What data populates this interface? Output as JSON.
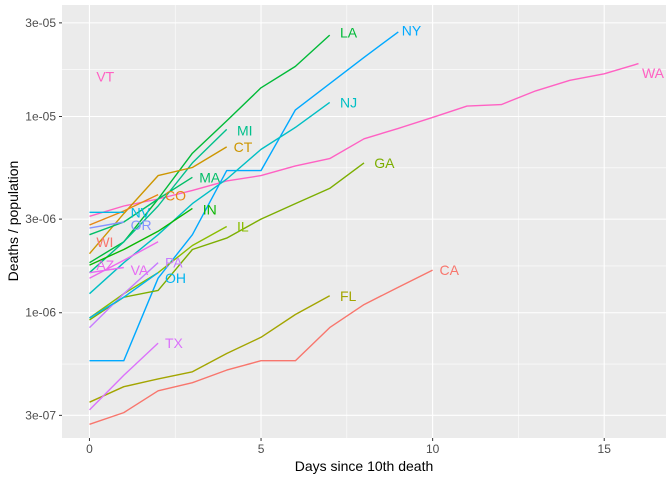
{
  "chart_data": {
    "type": "line",
    "title": "",
    "xlabel": "Days since 10th death",
    "ylabel": "Deaths / population",
    "x_scale": "linear",
    "y_scale": "log10",
    "xlim": [
      -0.8,
      16.8
    ],
    "ylim": [
      2.3e-07,
      3.7e-05
    ],
    "x_ticks": [
      0,
      5,
      10,
      15
    ],
    "x_tick_labels": [
      "0",
      "5",
      "10",
      "15"
    ],
    "y_ticks": [
      3e-07,
      1e-06,
      3e-06,
      1e-05,
      3e-05
    ],
    "y_tick_labels": [
      "3e-07",
      "1e-06",
      "3e-06",
      "1e-05",
      "3e-05"
    ],
    "grid": true,
    "legend": "none (series labeled at line ends)",
    "series": [
      {
        "name": "WA",
        "color": "#FF61C3",
        "x": [
          0,
          1,
          2,
          3,
          4,
          5,
          6,
          7,
          8,
          9,
          10,
          11,
          12,
          13,
          14,
          15,
          16
        ],
        "y": [
          3.1e-06,
          3.5e-06,
          3.8e-06,
          4.2e-06,
          4.7e-06,
          5e-06,
          5.6e-06,
          6.1e-06,
          7.7e-06,
          8.7e-06,
          9.9e-06,
          1.13e-05,
          1.15e-05,
          1.35e-05,
          1.53e-05,
          1.65e-05,
          1.86e-05
        ]
      },
      {
        "name": "NY",
        "color": "#00A9FF",
        "x": [
          0,
          1,
          2,
          3,
          4,
          5,
          6,
          7,
          8,
          9
        ],
        "y": [
          5.7e-07,
          5.7e-07,
          1.5e-06,
          2.5e-06,
          5.3e-06,
          5.3e-06,
          1.08e-05,
          1.47e-05,
          2e-05,
          2.7e-05
        ]
      },
      {
        "name": "LA",
        "color": "#00BA38",
        "x": [
          0,
          1,
          2,
          3,
          4,
          5,
          6,
          7
        ],
        "y": [
          1.8e-06,
          2.3e-06,
          3.8e-06,
          6.5e-06,
          9.5e-06,
          1.4e-05,
          1.8e-05,
          2.6e-05
        ]
      },
      {
        "name": "NJ",
        "color": "#00BFC4",
        "x": [
          0,
          1,
          2,
          3,
          4,
          5,
          6,
          7
        ],
        "y": [
          1.25e-06,
          1.8e-06,
          2.5e-06,
          3.6e-06,
          4.8e-06,
          6.8e-06,
          8.8e-06,
          1.18e-05
        ]
      },
      {
        "name": "MI",
        "color": "#00C08B",
        "x": [
          0,
          1,
          2,
          3,
          4
        ],
        "y": [
          1.6e-06,
          2.3e-06,
          3.5e-06,
          5.8e-06,
          8.6e-06
        ]
      },
      {
        "name": "CT",
        "color": "#CD9600",
        "x": [
          0,
          1,
          2,
          3,
          4
        ],
        "y": [
          2e-06,
          3.2e-06,
          5e-06,
          5.5e-06,
          7e-06
        ]
      },
      {
        "name": "GA",
        "color": "#7CAE00",
        "x": [
          0,
          1,
          2,
          3,
          4,
          5,
          6,
          7,
          8
        ],
        "y": [
          9.2e-07,
          1.2e-06,
          1.3e-06,
          2.1e-06,
          2.4e-06,
          3e-06,
          3.6e-06,
          4.3e-06,
          5.8e-06
        ]
      },
      {
        "name": "MA",
        "color": "#00BE67",
        "x": [
          0,
          1,
          2,
          3
        ],
        "y": [
          2.5e-06,
          2.9e-06,
          3.8e-06,
          4.9e-06
        ]
      },
      {
        "name": "CO",
        "color": "#E68613",
        "x": [
          0,
          1,
          2
        ],
        "y": [
          2.8e-06,
          3.3e-06,
          4e-06
        ]
      },
      {
        "name": "NV",
        "color": "#00B8E7",
        "x": [
          0,
          1
        ],
        "y": [
          3.25e-06,
          3.25e-06
        ]
      },
      {
        "name": "IN",
        "color": "#0CB702",
        "x": [
          0,
          1,
          2,
          3
        ],
        "y": [
          1.75e-06,
          2.1e-06,
          2.6e-06,
          3.4e-06
        ]
      },
      {
        "name": "OR",
        "color": "#8494FF",
        "x": [
          0,
          1
        ],
        "y": [
          2.7e-06,
          2.9e-06
        ]
      },
      {
        "name": "IL",
        "color": "#8ABD00",
        "x": [
          0,
          1,
          2,
          3,
          4
        ],
        "y": [
          9.4e-07,
          1.25e-06,
          1.6e-06,
          2.2e-06,
          2.75e-06
        ]
      },
      {
        "name": "WI",
        "color": "#F8766D",
        "x": [
          0
        ],
        "y": [
          2.3e-06
        ]
      },
      {
        "name": "AZ",
        "color": "#ED68ED",
        "x": [
          0,
          1,
          2
        ],
        "y": [
          1.5e-06,
          1.85e-06,
          2.3e-06
        ]
      },
      {
        "name": "PA",
        "color": "#C77CFF",
        "x": [
          0,
          1,
          2
        ],
        "y": [
          8.4e-07,
          1.25e-06,
          1.8e-06
        ]
      },
      {
        "name": "VA",
        "color": "#E76BF3",
        "x": [
          0,
          1
        ],
        "y": [
          1.6e-06,
          1.7e-06
        ]
      },
      {
        "name": "OH",
        "color": "#00B4F0",
        "x": [
          0,
          1,
          2
        ],
        "y": [
          9.4e-07,
          1.2e-06,
          1.6e-06
        ]
      },
      {
        "name": "FL",
        "color": "#A3A500",
        "x": [
          0,
          1,
          2,
          3,
          4,
          5,
          6,
          7
        ],
        "y": [
          3.5e-07,
          4.2e-07,
          4.6e-07,
          5e-07,
          6.2e-07,
          7.5e-07,
          9.8e-07,
          1.22e-06
        ]
      },
      {
        "name": "TX",
        "color": "#DB72FB",
        "x": [
          0,
          1,
          2
        ],
        "y": [
          3.2e-07,
          4.8e-07,
          7e-07
        ]
      },
      {
        "name": "CA",
        "color": "#F8766D",
        "x": [
          0,
          1,
          2,
          3,
          4,
          5,
          6,
          7,
          8,
          9,
          10
        ],
        "y": [
          2.7e-07,
          3.1e-07,
          4e-07,
          4.4e-07,
          5.1e-07,
          5.7e-07,
          5.7e-07,
          8.4e-07,
          1.1e-06,
          1.35e-06,
          1.65e-06
        ]
      },
      {
        "name": "VT",
        "color": "#FF61C3",
        "x": [],
        "y": []
      }
    ],
    "labels": [
      {
        "text": "WA",
        "x": 16.1,
        "y": 1.67e-05,
        "color": "#FF61C3"
      },
      {
        "text": "NY",
        "x": 9.1,
        "y": 2.75e-05,
        "color": "#00A9FF"
      },
      {
        "text": "LA",
        "x": 7.3,
        "y": 2.68e-05,
        "color": "#00BA38"
      },
      {
        "name": "VT",
        "text": "VT",
        "x": 0.2,
        "y": 1.6e-05,
        "color": "#FF61C3"
      },
      {
        "text": "NJ",
        "x": 7.3,
        "y": 1.18e-05,
        "color": "#00BFC4"
      },
      {
        "text": "MI",
        "x": 4.3,
        "y": 8.5e-06,
        "color": "#00C08B"
      },
      {
        "text": "CT",
        "x": 4.2,
        "y": 7e-06,
        "color": "#CD9600"
      },
      {
        "text": "GA",
        "x": 8.3,
        "y": 5.8e-06,
        "color": "#7CAE00"
      },
      {
        "text": "MA",
        "x": 3.2,
        "y": 4.9e-06,
        "color": "#00BE67"
      },
      {
        "text": "CO",
        "x": 2.2,
        "y": 3.95e-06,
        "color": "#E68613"
      },
      {
        "text": "NV",
        "x": 1.2,
        "y": 3.25e-06,
        "color": "#00B8E7"
      },
      {
        "text": "IN",
        "x": 3.3,
        "y": 3.35e-06,
        "color": "#0CB702"
      },
      {
        "text": "OR",
        "x": 1.2,
        "y": 2.8e-06,
        "color": "#8494FF"
      },
      {
        "text": "IL",
        "x": 4.3,
        "y": 2.75e-06,
        "color": "#8ABD00"
      },
      {
        "text": "WI",
        "x": 0.2,
        "y": 2.3e-06,
        "color": "#F8766D"
      },
      {
        "text": "PA",
        "x": 2.2,
        "y": 1.8e-06,
        "color": "#C77CFF"
      },
      {
        "text": "AZ",
        "x": 0.2,
        "y": 1.75e-06,
        "color": "#ED68ED"
      },
      {
        "text": "VA",
        "x": 1.2,
        "y": 1.65e-06,
        "color": "#E76BF3"
      },
      {
        "text": "OH",
        "x": 2.2,
        "y": 1.5e-06,
        "color": "#00B4F0"
      },
      {
        "text": "FL",
        "x": 7.3,
        "y": 1.22e-06,
        "color": "#A3A500"
      },
      {
        "text": "CA",
        "x": 10.2,
        "y": 1.65e-06,
        "color": "#F8766D"
      },
      {
        "text": "TX",
        "x": 2.2,
        "y": 7e-07,
        "color": "#DB72FB"
      }
    ]
  }
}
